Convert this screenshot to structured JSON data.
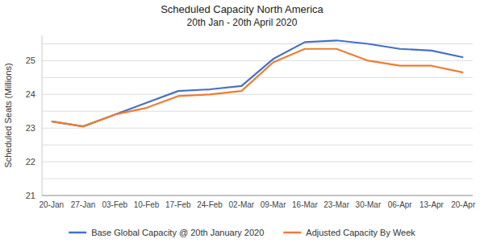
{
  "chart_data": {
    "type": "line",
    "title": "Scheduled Capacity North America",
    "subtitle": "20th Jan - 20th April 2020",
    "y_label": "Scheduled Seats (Millions)",
    "categories": [
      "20-Jan",
      "27-Jan",
      "03-Feb",
      "10-Feb",
      "17-Feb",
      "24-Feb",
      "02-Mar",
      "09-Mar",
      "16-Mar",
      "23-Mar",
      "30-Mar",
      "06-Apr",
      "13-Apr",
      "20-Apr"
    ],
    "series": [
      {
        "name": "Base Global Capacity @ 20th January 2020",
        "color": "#4472C4",
        "values": [
          23.2,
          23.05,
          23.4,
          23.75,
          24.1,
          24.15,
          24.25,
          25.05,
          25.55,
          25.6,
          25.5,
          25.35,
          25.3,
          25.1
        ]
      },
      {
        "name": "Adjusted Capacity By Week",
        "color": "#ED7D31",
        "values": [
          23.2,
          23.05,
          23.4,
          23.6,
          23.95,
          24.0,
          24.1,
          24.95,
          25.35,
          25.35,
          25.0,
          24.85,
          24.85,
          24.65
        ]
      }
    ],
    "ylim": [
      21.0,
      25.75
    ],
    "yticks": [
      21,
      {
        "value": 21.5,
        "label": null
      },
      22,
      {
        "value": 22.5,
        "label": null
      },
      23,
      {
        "value": 23.5,
        "label": null
      },
      24,
      {
        "value": 24.5,
        "label": null
      },
      25,
      {
        "value": 25.5,
        "label": null
      }
    ],
    "grid": true,
    "legend": "bottom"
  }
}
